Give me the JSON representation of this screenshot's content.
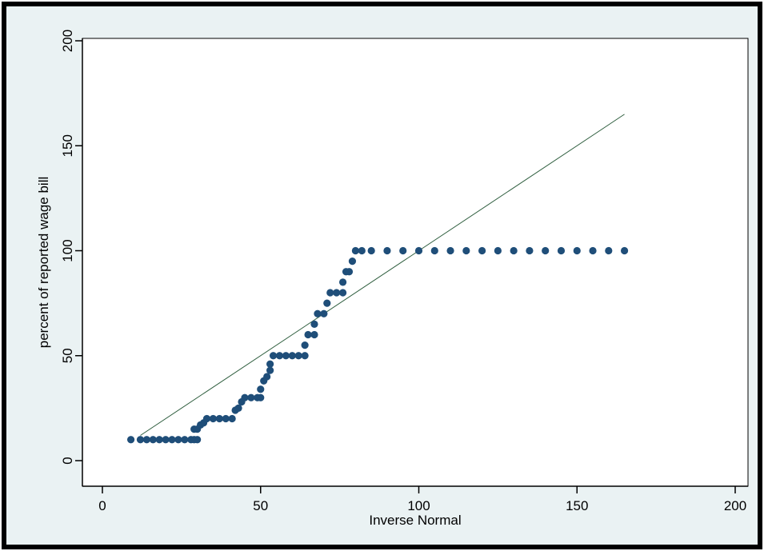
{
  "colors": {
    "background": "#eaf2f3",
    "plot_area": "#ffffff",
    "points": "#1f4e79",
    "reference_line": "#2f5e3f",
    "frame": "#000000"
  },
  "chart_data": {
    "type": "scatter",
    "title": "",
    "xlabel": "Inverse Normal",
    "ylabel": "percent of reported wage bill",
    "xlim": [
      0,
      200
    ],
    "ylim": [
      0,
      200
    ],
    "x_ticks": [
      0,
      50,
      100,
      150,
      200
    ],
    "y_ticks": [
      0,
      50,
      100,
      150,
      200
    ],
    "grid": false,
    "reference_line": {
      "x": [
        12,
        165
      ],
      "y": [
        12,
        165
      ]
    },
    "series": [
      {
        "values": [
          [
            9,
            10
          ],
          [
            12,
            10
          ],
          [
            14,
            10
          ],
          [
            16,
            10
          ],
          [
            18,
            10
          ],
          [
            20,
            10
          ],
          [
            22,
            10
          ],
          [
            24,
            10
          ],
          [
            26,
            10
          ],
          [
            28,
            10
          ],
          [
            29,
            10
          ],
          [
            30,
            10
          ],
          [
            29,
            15
          ],
          [
            30,
            15
          ],
          [
            31,
            17
          ],
          [
            32,
            18
          ],
          [
            33,
            20
          ],
          [
            35,
            20
          ],
          [
            37,
            20
          ],
          [
            39,
            20
          ],
          [
            41,
            20
          ],
          [
            42,
            24
          ],
          [
            43,
            25
          ],
          [
            44,
            28
          ],
          [
            45,
            30
          ],
          [
            47,
            30
          ],
          [
            49,
            30
          ],
          [
            50,
            30
          ],
          [
            50,
            34
          ],
          [
            51,
            38
          ],
          [
            52,
            40
          ],
          [
            53,
            43
          ],
          [
            53,
            46
          ],
          [
            54,
            50
          ],
          [
            56,
            50
          ],
          [
            58,
            50
          ],
          [
            60,
            50
          ],
          [
            62,
            50
          ],
          [
            64,
            50
          ],
          [
            64,
            55
          ],
          [
            65,
            60
          ],
          [
            67,
            60
          ],
          [
            67,
            65
          ],
          [
            68,
            70
          ],
          [
            70,
            70
          ],
          [
            71,
            75
          ],
          [
            72,
            80
          ],
          [
            74,
            80
          ],
          [
            76,
            80
          ],
          [
            76,
            85
          ],
          [
            77,
            90
          ],
          [
            78,
            90
          ],
          [
            79,
            95
          ],
          [
            80,
            100
          ],
          [
            82,
            100
          ],
          [
            85,
            100
          ],
          [
            90,
            100
          ],
          [
            95,
            100
          ],
          [
            100,
            100
          ],
          [
            105,
            100
          ],
          [
            110,
            100
          ],
          [
            115,
            100
          ],
          [
            120,
            100
          ],
          [
            125,
            100
          ],
          [
            130,
            100
          ],
          [
            135,
            100
          ],
          [
            140,
            100
          ],
          [
            145,
            100
          ],
          [
            150,
            100
          ],
          [
            155,
            100
          ],
          [
            160,
            100
          ],
          [
            165,
            100
          ]
        ]
      }
    ]
  }
}
